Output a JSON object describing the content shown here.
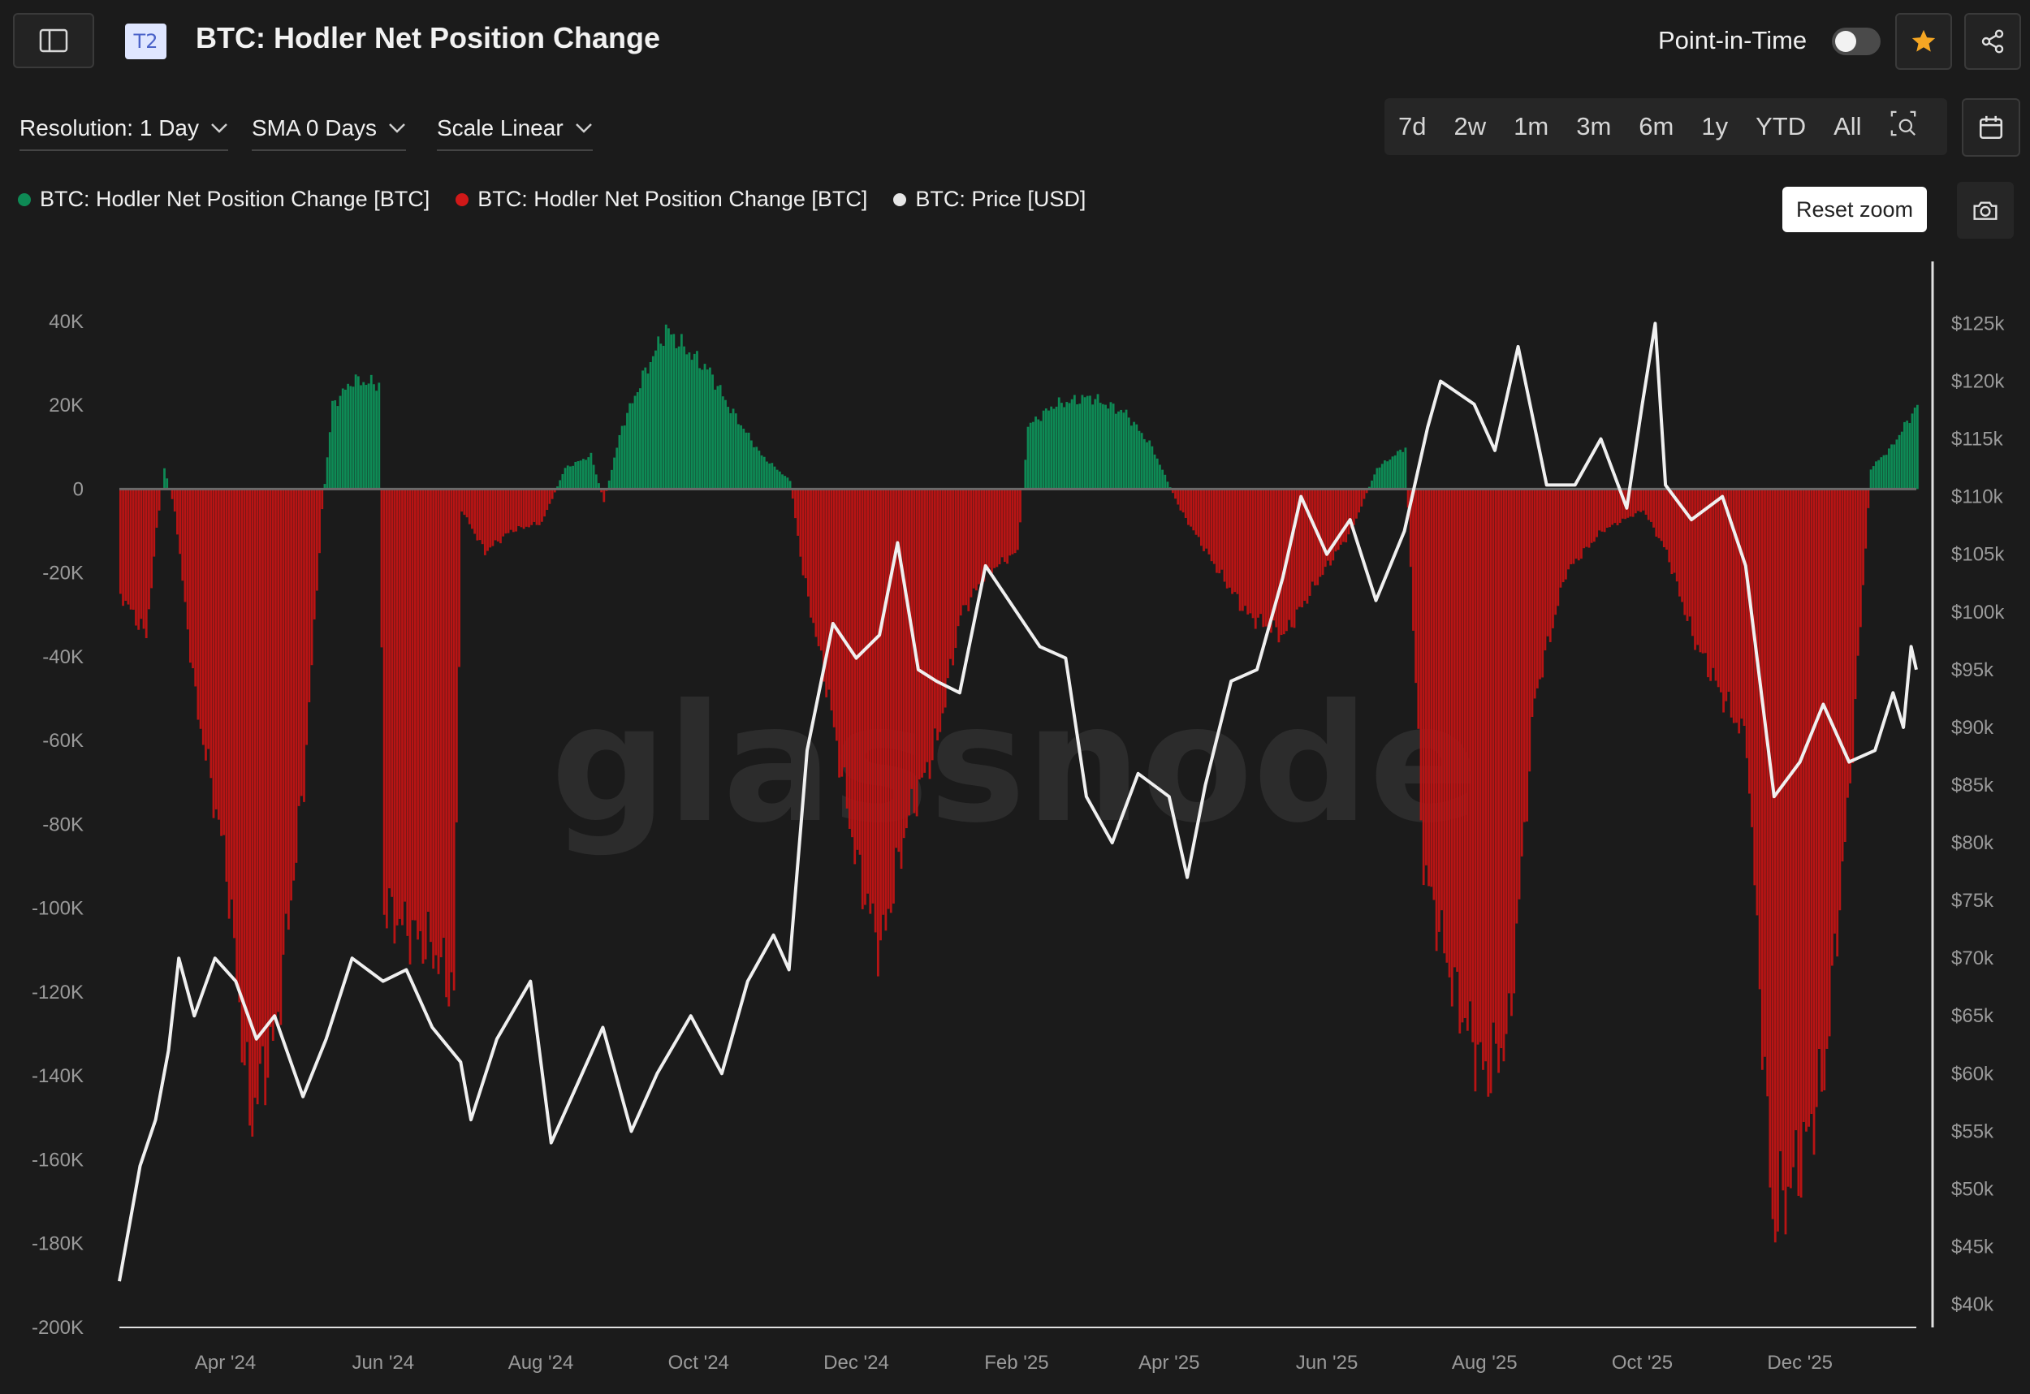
{
  "header": {
    "tier_badge": "T2",
    "title": "BTC: Hodler Net Position Change",
    "point_in_time_label": "Point-in-Time",
    "point_in_time_enabled": false
  },
  "controls": {
    "resolution_label": "Resolution: 1 Day",
    "sma_label": "SMA 0 Days",
    "scale_label": "Scale Linear",
    "ranges": [
      "7d",
      "2w",
      "1m",
      "3m",
      "6m",
      "1y",
      "YTD",
      "All"
    ]
  },
  "reset_zoom_label": "Reset zoom",
  "watermark": "glassnode",
  "colors": {
    "positive": "#0e8a55",
    "negative": "#b81414",
    "price": "#f0f0f0",
    "accent_star": "#f5a623"
  },
  "chart_data": {
    "type": "bar",
    "legend": [
      {
        "label": "BTC: Hodler Net Position Change [BTC]",
        "color": "#0e8a55"
      },
      {
        "label": "BTC: Hodler Net Position Change [BTC]",
        "color": "#b81414"
      },
      {
        "label": "BTC: Price [USD]",
        "color": "#e6e6e6"
      }
    ],
    "x_range": [
      "2024-02-20",
      "2026-01-15"
    ],
    "x_ticks": [
      {
        "date": "2024-04-01",
        "label": "Apr '24"
      },
      {
        "date": "2024-06-01",
        "label": "Jun '24"
      },
      {
        "date": "2024-08-01",
        "label": "Aug '24"
      },
      {
        "date": "2024-10-01",
        "label": "Oct '24"
      },
      {
        "date": "2024-12-01",
        "label": "Dec '24"
      },
      {
        "date": "2025-02-01",
        "label": "Feb '25"
      },
      {
        "date": "2025-04-01",
        "label": "Apr '25"
      },
      {
        "date": "2025-06-01",
        "label": "Jun '25"
      },
      {
        "date": "2025-08-01",
        "label": "Aug '25"
      },
      {
        "date": "2025-10-01",
        "label": "Oct '25"
      },
      {
        "date": "2025-12-01",
        "label": "Dec '25"
      }
    ],
    "y_left": {
      "range": [
        -200000,
        45000
      ],
      "ticks": [
        40000,
        20000,
        0,
        -20000,
        -40000,
        -60000,
        -80000,
        -100000,
        -120000,
        -140000,
        -160000,
        -180000,
        -200000
      ],
      "tick_labels": [
        "40K",
        "20K",
        "0",
        "-20K",
        "-40K",
        "-60K",
        "-80K",
        "-100K",
        "-120K",
        "-140K",
        "-160K",
        "-180K",
        "-200K"
      ]
    },
    "y_right": {
      "range": [
        38000,
        127000
      ],
      "ticks": [
        125000,
        120000,
        115000,
        110000,
        105000,
        100000,
        95000,
        90000,
        85000,
        80000,
        75000,
        70000,
        65000,
        60000,
        55000,
        50000,
        45000,
        40000
      ],
      "tick_labels": [
        "$125k",
        "$120k",
        "$115k",
        "$110k",
        "$105k",
        "$100k",
        "$95k",
        "$90k",
        "$85k",
        "$80k",
        "$75k",
        "$70k",
        "$65k",
        "$60k",
        "$55k",
        "$50k",
        "$45k",
        "$40k"
      ]
    },
    "series": [
      {
        "name": "BTC: Hodler Net Position Change [BTC]",
        "axis": "left",
        "points": [
          [
            "2024-02-20",
            -25000
          ],
          [
            "2024-03-01",
            -35000
          ],
          [
            "2024-03-05",
            -10000
          ],
          [
            "2024-03-08",
            5000
          ],
          [
            "2024-03-12",
            -5000
          ],
          [
            "2024-03-20",
            -50000
          ],
          [
            "2024-04-01",
            -90000
          ],
          [
            "2024-04-10",
            -150000
          ],
          [
            "2024-04-20",
            -130000
          ],
          [
            "2024-05-01",
            -70000
          ],
          [
            "2024-05-08",
            -5000
          ],
          [
            "2024-05-12",
            20000
          ],
          [
            "2024-05-20",
            26000
          ],
          [
            "2024-05-30",
            25000
          ],
          [
            "2024-06-01",
            -100000
          ],
          [
            "2024-06-10",
            -105000
          ],
          [
            "2024-06-20",
            -110000
          ],
          [
            "2024-06-28",
            -120000
          ],
          [
            "2024-07-01",
            -5000
          ],
          [
            "2024-07-10",
            -15000
          ],
          [
            "2024-07-20",
            -10000
          ],
          [
            "2024-08-01",
            -8000
          ],
          [
            "2024-08-10",
            5000
          ],
          [
            "2024-08-20",
            8000
          ],
          [
            "2024-08-25",
            -3000
          ],
          [
            "2024-09-01",
            15000
          ],
          [
            "2024-09-10",
            28000
          ],
          [
            "2024-09-18",
            38000
          ],
          [
            "2024-09-28",
            32000
          ],
          [
            "2024-10-05",
            28000
          ],
          [
            "2024-10-12",
            20000
          ],
          [
            "2024-10-25",
            8000
          ],
          [
            "2024-11-05",
            2000
          ],
          [
            "2024-11-10",
            -20000
          ],
          [
            "2024-11-20",
            -50000
          ],
          [
            "2024-12-01",
            -90000
          ],
          [
            "2024-12-10",
            -110000
          ],
          [
            "2024-12-20",
            -80000
          ],
          [
            "2025-01-01",
            -60000
          ],
          [
            "2025-01-10",
            -30000
          ],
          [
            "2025-01-20",
            -20000
          ],
          [
            "2025-02-01",
            -15000
          ],
          [
            "2025-02-05",
            15000
          ],
          [
            "2025-02-15",
            20000
          ],
          [
            "2025-03-01",
            22000
          ],
          [
            "2025-03-15",
            18000
          ],
          [
            "2025-03-25",
            10000
          ],
          [
            "2025-04-05",
            -5000
          ],
          [
            "2025-04-20",
            -20000
          ],
          [
            "2025-05-01",
            -30000
          ],
          [
            "2025-05-15",
            -35000
          ],
          [
            "2025-05-30",
            -20000
          ],
          [
            "2025-06-10",
            -10000
          ],
          [
            "2025-06-20",
            5000
          ],
          [
            "2025-07-01",
            10000
          ],
          [
            "2025-07-08",
            -90000
          ],
          [
            "2025-07-20",
            -120000
          ],
          [
            "2025-08-01",
            -140000
          ],
          [
            "2025-08-10",
            -130000
          ],
          [
            "2025-08-20",
            -50000
          ],
          [
            "2025-09-01",
            -20000
          ],
          [
            "2025-09-15",
            -10000
          ],
          [
            "2025-10-01",
            -5000
          ],
          [
            "2025-10-10",
            -15000
          ],
          [
            "2025-10-20",
            -35000
          ],
          [
            "2025-11-01",
            -50000
          ],
          [
            "2025-11-10",
            -60000
          ],
          [
            "2025-11-20",
            -175000
          ],
          [
            "2025-12-01",
            -160000
          ],
          [
            "2025-12-10",
            -140000
          ],
          [
            "2025-12-20",
            -70000
          ],
          [
            "2025-12-28",
            5000
          ],
          [
            "2026-01-05",
            10000
          ],
          [
            "2026-01-15",
            20000
          ]
        ]
      },
      {
        "name": "BTC: Price [USD]",
        "axis": "right",
        "points": [
          [
            "2024-02-20",
            42000
          ],
          [
            "2024-02-28",
            52000
          ],
          [
            "2024-03-05",
            56000
          ],
          [
            "2024-03-10",
            62000
          ],
          [
            "2024-03-14",
            70000
          ],
          [
            "2024-03-20",
            65000
          ],
          [
            "2024-03-28",
            70000
          ],
          [
            "2024-04-05",
            68000
          ],
          [
            "2024-04-13",
            63000
          ],
          [
            "2024-04-20",
            65000
          ],
          [
            "2024-05-01",
            58000
          ],
          [
            "2024-05-10",
            63000
          ],
          [
            "2024-05-20",
            70000
          ],
          [
            "2024-06-01",
            68000
          ],
          [
            "2024-06-10",
            69000
          ],
          [
            "2024-06-20",
            64000
          ],
          [
            "2024-07-01",
            61000
          ],
          [
            "2024-07-05",
            56000
          ],
          [
            "2024-07-15",
            63000
          ],
          [
            "2024-07-28",
            68000
          ],
          [
            "2024-08-05",
            54000
          ],
          [
            "2024-08-15",
            59000
          ],
          [
            "2024-08-25",
            64000
          ],
          [
            "2024-09-05",
            55000
          ],
          [
            "2024-09-15",
            60000
          ],
          [
            "2024-09-28",
            65000
          ],
          [
            "2024-10-10",
            60000
          ],
          [
            "2024-10-20",
            68000
          ],
          [
            "2024-10-30",
            72000
          ],
          [
            "2024-11-05",
            69000
          ],
          [
            "2024-11-12",
            88000
          ],
          [
            "2024-11-22",
            99000
          ],
          [
            "2024-12-01",
            96000
          ],
          [
            "2024-12-10",
            98000
          ],
          [
            "2024-12-17",
            106000
          ],
          [
            "2024-12-25",
            95000
          ],
          [
            "2025-01-01",
            94000
          ],
          [
            "2025-01-10",
            93000
          ],
          [
            "2025-01-20",
            104000
          ],
          [
            "2025-02-01",
            100000
          ],
          [
            "2025-02-10",
            97000
          ],
          [
            "2025-02-20",
            96000
          ],
          [
            "2025-02-28",
            84000
          ],
          [
            "2025-03-10",
            80000
          ],
          [
            "2025-03-20",
            86000
          ],
          [
            "2025-04-01",
            84000
          ],
          [
            "2025-04-08",
            77000
          ],
          [
            "2025-04-15",
            85000
          ],
          [
            "2025-04-25",
            94000
          ],
          [
            "2025-05-05",
            95000
          ],
          [
            "2025-05-15",
            103000
          ],
          [
            "2025-05-22",
            110000
          ],
          [
            "2025-06-01",
            105000
          ],
          [
            "2025-06-10",
            108000
          ],
          [
            "2025-06-20",
            101000
          ],
          [
            "2025-07-01",
            107000
          ],
          [
            "2025-07-10",
            116000
          ],
          [
            "2025-07-15",
            120000
          ],
          [
            "2025-07-28",
            118000
          ],
          [
            "2025-08-05",
            114000
          ],
          [
            "2025-08-14",
            123000
          ],
          [
            "2025-08-25",
            111000
          ],
          [
            "2025-09-05",
            111000
          ],
          [
            "2025-09-15",
            115000
          ],
          [
            "2025-09-25",
            109000
          ],
          [
            "2025-10-01",
            118000
          ],
          [
            "2025-10-06",
            125000
          ],
          [
            "2025-10-10",
            111000
          ],
          [
            "2025-10-20",
            108000
          ],
          [
            "2025-11-01",
            110000
          ],
          [
            "2025-11-10",
            104000
          ],
          [
            "2025-11-21",
            84000
          ],
          [
            "2025-12-01",
            87000
          ],
          [
            "2025-12-10",
            92000
          ],
          [
            "2025-12-20",
            87000
          ],
          [
            "2025-12-30",
            88000
          ],
          [
            "2026-01-06",
            93000
          ],
          [
            "2026-01-10",
            90000
          ],
          [
            "2026-01-13",
            97000
          ],
          [
            "2026-01-15",
            95000
          ]
        ]
      }
    ],
    "grid": false
  }
}
